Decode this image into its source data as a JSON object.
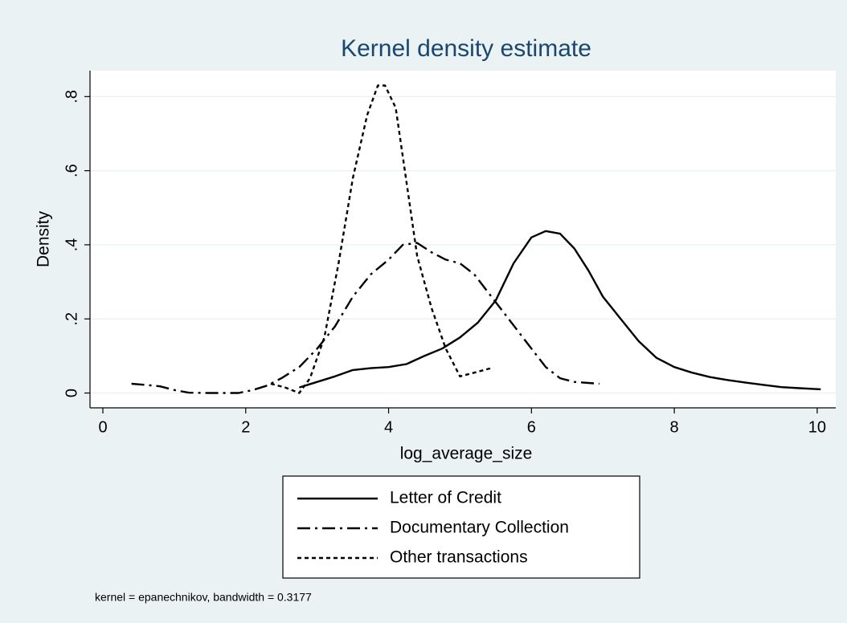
{
  "chart_data": {
    "type": "line",
    "title": "Kernel density estimate",
    "xlabel": "log_average_size",
    "ylabel": "Density",
    "note": "kernel = epanechnikov, bandwidth = 0.3177",
    "xlim": [
      -0.18,
      10.26
    ],
    "ylim": [
      -0.04,
      0.87
    ],
    "xticks": [
      0,
      2,
      4,
      6,
      8,
      10
    ],
    "yticks": [
      0,
      {
        "value": 0.2,
        "label": ".2"
      },
      {
        "value": 0.4,
        "label": ".4"
      },
      {
        "value": 0.6,
        "label": ".6"
      },
      {
        "value": 0.8,
        "label": ".8"
      }
    ],
    "grid": true,
    "legend": "bottom",
    "series": [
      {
        "name": "Letter of Credit",
        "color": "#000000",
        "dash": "solid",
        "x": [
          2.75,
          3.0,
          3.25,
          3.5,
          3.75,
          4.0,
          4.25,
          4.5,
          4.75,
          5.0,
          5.25,
          5.5,
          5.75,
          6.0,
          6.2,
          6.4,
          6.6,
          6.8,
          7.0,
          7.25,
          7.5,
          7.75,
          8.0,
          8.25,
          8.5,
          8.75,
          9.0,
          9.25,
          9.5,
          9.75,
          10.05
        ],
        "values": [
          0.015,
          0.03,
          0.045,
          0.062,
          0.067,
          0.07,
          0.078,
          0.1,
          0.12,
          0.15,
          0.19,
          0.25,
          0.35,
          0.42,
          0.437,
          0.43,
          0.39,
          0.33,
          0.26,
          0.2,
          0.14,
          0.095,
          0.07,
          0.055,
          0.043,
          0.035,
          0.028,
          0.022,
          0.016,
          0.013,
          0.01
        ]
      },
      {
        "name": "Documentary Collection",
        "color": "#000000",
        "dash": "dashdot",
        "x": [
          0.4,
          0.6,
          0.8,
          1.0,
          1.2,
          1.5,
          1.9,
          2.1,
          2.3,
          2.5,
          2.75,
          3.0,
          3.25,
          3.5,
          3.75,
          4.0,
          4.2,
          4.4,
          4.6,
          4.8,
          5.0,
          5.2,
          5.4,
          5.6,
          5.8,
          6.0,
          6.2,
          6.4,
          6.6,
          6.95
        ],
        "values": [
          0.025,
          0.022,
          0.018,
          0.008,
          0.001,
          0,
          0,
          0.008,
          0.02,
          0.04,
          0.07,
          0.12,
          0.18,
          0.26,
          0.32,
          0.36,
          0.4,
          0.405,
          0.38,
          0.36,
          0.35,
          0.32,
          0.27,
          0.22,
          0.17,
          0.12,
          0.07,
          0.04,
          0.03,
          0.025
        ]
      },
      {
        "name": "Other transactions",
        "color": "#000000",
        "dash": "dot",
        "x": [
          2.35,
          2.55,
          2.75,
          2.9,
          3.1,
          3.3,
          3.5,
          3.7,
          3.85,
          3.95,
          4.1,
          4.25,
          4.4,
          4.6,
          4.8,
          5.0,
          5.2,
          5.45
        ],
        "values": [
          0.025,
          0.015,
          0,
          0.04,
          0.15,
          0.35,
          0.58,
          0.75,
          0.83,
          0.83,
          0.77,
          0.57,
          0.37,
          0.23,
          0.12,
          0.045,
          0.055,
          0.068
        ]
      }
    ]
  }
}
